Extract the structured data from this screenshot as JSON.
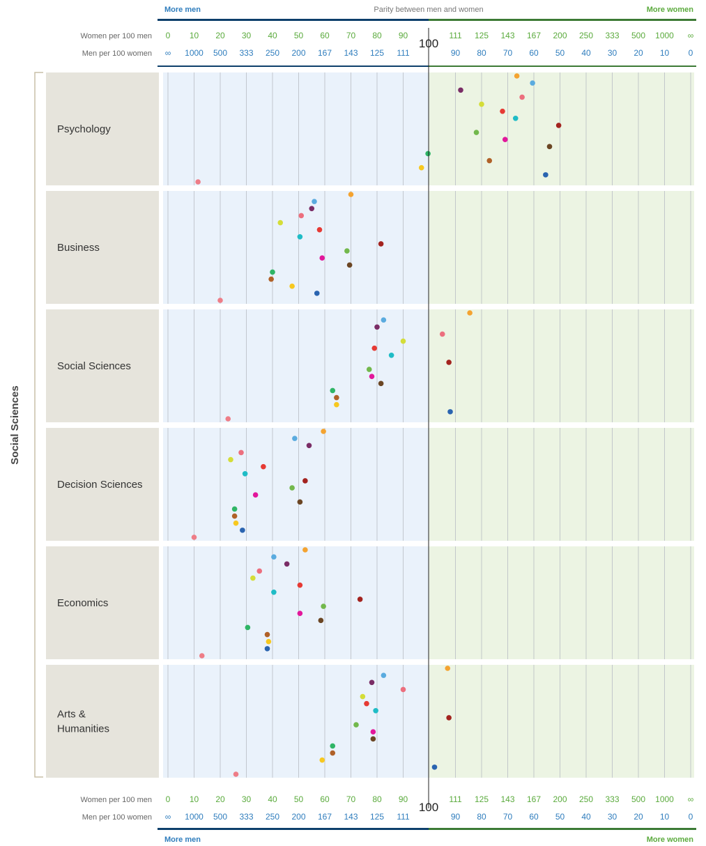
{
  "header": {
    "more_men": "More men",
    "parity": "Parity between men and women",
    "more_women": "More women"
  },
  "footer": {
    "more_men": "More men",
    "more_women": "More women"
  },
  "group_label": "Social Sciences",
  "colors": {
    "men_side": "#eaf2fb",
    "women_side": "#ecf4e3",
    "label_panel": "#e6e4dc",
    "men_bar": "#0d3f6b",
    "women_bar": "#3c7a35",
    "grid": "#b8bcc4"
  },
  "chart_data": {
    "type": "scatter",
    "scales": {
      "women_per_100_men_label": "Women per 100 men",
      "men_per_100_women_label": "Men per 100 women",
      "women_per_100_men": [
        "0",
        "10",
        "20",
        "30",
        "40",
        "50",
        "60",
        "70",
        "80",
        "90",
        "",
        "111",
        "125",
        "143",
        "167",
        "200",
        "250",
        "333",
        "500",
        "1000",
        "∞"
      ],
      "men_per_100_women": [
        "∞",
        "1000",
        "500",
        "333",
        "250",
        "200",
        "167",
        "143",
        "125",
        "111",
        "",
        "90",
        "80",
        "70",
        "60",
        "50",
        "40",
        "30",
        "20",
        "10",
        "0"
      ],
      "parity_value": "100"
    },
    "x_axis_note": "Position index 0–20; index 10 = parity (100). Left half = women per 100 men (0–90), right half = men per 100 women (90–0).",
    "xlim": [
      0,
      20
    ],
    "series": [
      {
        "color": "#f4a330"
      },
      {
        "color": "#5aabdf"
      },
      {
        "color": "#7a2d66"
      },
      {
        "color": "#ec6f7e"
      },
      {
        "color": "#d4dd38"
      },
      {
        "color": "#e63a34"
      },
      {
        "color": "#1fbcc6"
      },
      {
        "color": "#a3231f"
      },
      {
        "color": "#72b84c"
      },
      {
        "color": "#e2179b"
      },
      {
        "color": "#6b4624"
      },
      {
        "color": "#2fb566"
      },
      {
        "color": "#b06128"
      },
      {
        "color": "#f7c81f"
      },
      {
        "color": "#2a64b0"
      },
      {
        "color": "#ee7d87"
      }
    ],
    "panels": [
      {
        "name": "Psychology",
        "values": [
          13.35,
          13.95,
          11.2,
          13.55,
          12.0,
          12.8,
          13.3,
          14.95,
          11.8,
          12.9,
          14.6,
          9.95,
          12.3,
          9.7,
          14.45,
          1.15
        ]
      },
      {
        "name": "Business",
        "values": [
          7.0,
          5.6,
          5.5,
          5.1,
          4.3,
          5.8,
          5.05,
          8.15,
          6.85,
          5.9,
          6.95,
          4.0,
          3.95,
          4.75,
          5.7,
          2.0
        ]
      },
      {
        "name": "Social Sciences",
        "values": [
          11.55,
          8.25,
          8.0,
          10.5,
          9.0,
          7.9,
          8.55,
          10.75,
          7.7,
          7.8,
          8.15,
          6.3,
          6.45,
          6.45,
          10.8,
          2.3
        ]
      },
      {
        "name": "Decision Sciences",
        "values": [
          5.95,
          4.85,
          5.4,
          2.8,
          2.4,
          3.65,
          2.95,
          5.25,
          4.75,
          3.35,
          5.05,
          2.55,
          2.55,
          2.6,
          2.85,
          1.0
        ]
      },
      {
        "name": "Economics",
        "values": [
          5.25,
          4.05,
          4.55,
          3.5,
          3.25,
          5.05,
          4.05,
          7.35,
          5.95,
          5.05,
          5.85,
          3.05,
          3.8,
          3.85,
          3.8,
          1.3
        ]
      },
      {
        "name": "Arts & Humanities",
        "values": [
          10.7,
          8.25,
          7.8,
          9.0,
          7.45,
          7.6,
          7.95,
          10.75,
          7.2,
          7.85,
          7.85,
          6.3,
          6.3,
          5.9,
          10.2,
          2.6
        ]
      }
    ]
  }
}
